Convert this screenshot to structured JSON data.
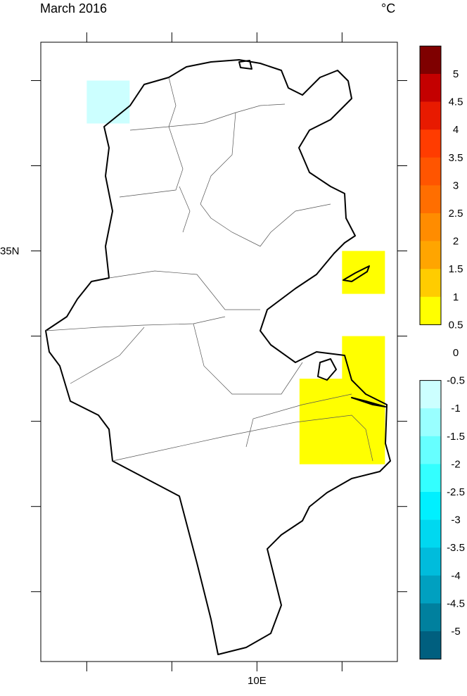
{
  "title": "March 2016",
  "units": "°C",
  "map": {
    "lonlim": [
      7.46,
      11.65
    ],
    "latlim": [
      30.18,
      37.45
    ],
    "xticks": [
      {
        "value": 8,
        "label": null
      },
      {
        "value": 9,
        "label": null
      },
      {
        "value": 10,
        "label": "10E"
      },
      {
        "value": 11,
        "label": null
      }
    ],
    "yticks": [
      {
        "value": 31,
        "label": null
      },
      {
        "value": 32,
        "label": null
      },
      {
        "value": 33,
        "label": null
      },
      {
        "value": 34,
        "label": null
      },
      {
        "value": 35,
        "label": "35N"
      },
      {
        "value": 36,
        "label": null
      },
      {
        "value": 37,
        "label": null
      }
    ],
    "cell_size": 0.5,
    "cells": [
      {
        "lon": 8,
        "lat": 36.5,
        "value": -0.75
      },
      {
        "lon": 11,
        "lat": 34.5,
        "value": 0.75
      },
      {
        "lon": 11,
        "lat": 33.5,
        "value": 0.75
      },
      {
        "lon": 10.5,
        "lat": 33,
        "value": 0.75
      },
      {
        "lon": 11,
        "lat": 33,
        "value": 0.75
      },
      {
        "lon": 10.5,
        "lat": 32.5,
        "value": 0.75
      },
      {
        "lon": 11,
        "lat": 32.5,
        "value": 0.75
      }
    ]
  },
  "colorbar": {
    "levels": [
      5,
      4.5,
      4,
      3.5,
      3,
      2.5,
      2,
      1.5,
      1,
      0.5,
      0,
      -0.5,
      -1,
      -1.5,
      -2,
      -2.5,
      -3,
      -3.5,
      -4,
      -4.5,
      -5
    ],
    "colors": [
      "#7f0000",
      "#c40000",
      "#e81a00",
      "#ff3c00",
      "#ff5500",
      "#ff6e00",
      "#ff8c00",
      "#ffa500",
      "#ffcc00",
      "#ffff00",
      null,
      null,
      "#ccffff",
      "#99ffff",
      "#66ffff",
      "#33ffff",
      "#00f0ff",
      "#00d8f0",
      "#00bcdc",
      "#00a0c0",
      "#00809e",
      "#005f7f"
    ]
  }
}
